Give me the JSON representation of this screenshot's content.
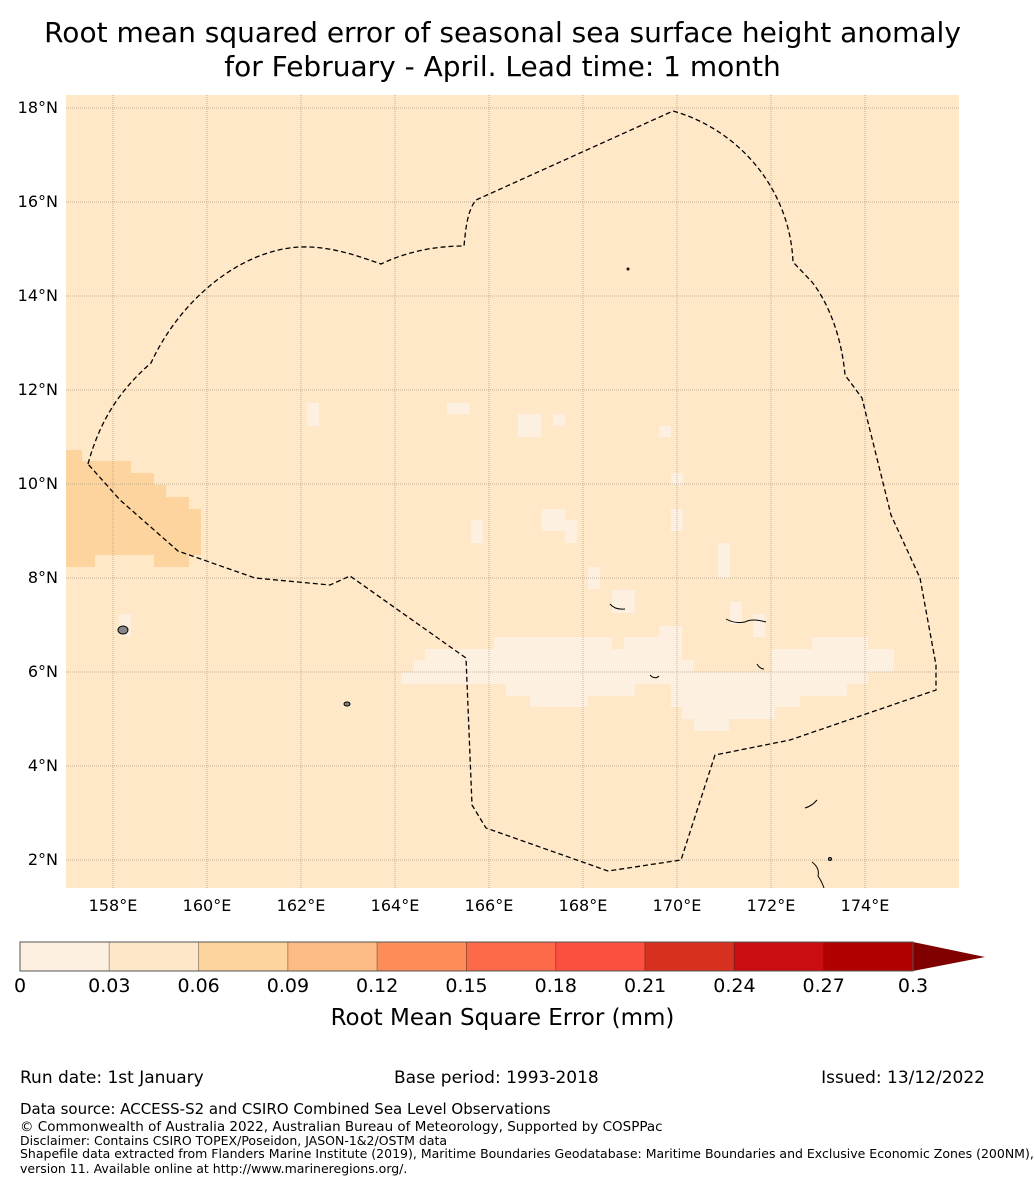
{
  "title_line1": "Root mean squared error of seasonal sea surface height anomaly",
  "title_line2": "for February - April. Lead time: 1 month",
  "map": {
    "lat_labels": [
      "18°N",
      "16°N",
      "14°N",
      "12°N",
      "10°N",
      "8°N",
      "6°N",
      "4°N",
      "2°N"
    ],
    "lon_labels": [
      "158°E",
      "160°E",
      "162°E",
      "164°E",
      "166°E",
      "168°E",
      "170°E",
      "172°E",
      "174°E"
    ],
    "background_color": "#fee8c8"
  },
  "colorbar": {
    "label": "Root Mean Square Error (mm)",
    "ticks": [
      "0",
      "0.03",
      "0.06",
      "0.09",
      "0.12",
      "0.15",
      "0.18",
      "0.21",
      "0.24",
      "0.27",
      "0.3"
    ],
    "colors": [
      "#fef0e0",
      "#fee6c8",
      "#fdd49e",
      "#fdbb84",
      "#fc8d59",
      "#fc6a4a",
      "#fb5040",
      "#d8301f",
      "#c90d10",
      "#b00000"
    ],
    "extend_color": "#800000"
  },
  "footer": {
    "run_date": "Run date: 1st January",
    "base_period": "Base period: 1993-2018",
    "issued": "Issued: 13/12/2022",
    "data_source": "Data source: ACCESS-S2 and CSIRO Combined Sea Level Observations",
    "copyright": "© Commonwealth of Australia 2022, Australian Bureau of Meteorology, Supported by COSPPac",
    "disclaimer": "Disclaimer: Contains CSIRO TOPEX/Poseidon, JASON-1&2/OSTM data",
    "shapefile1": "Shapefile data extracted from Flanders Marine Institute (2019), Maritime Boundaries Geodatabase: Maritime Boundaries and Exclusive Economic Zones (200NM),",
    "shapefile2": "version 11. Available online at http://www.marineregions.org/."
  }
}
